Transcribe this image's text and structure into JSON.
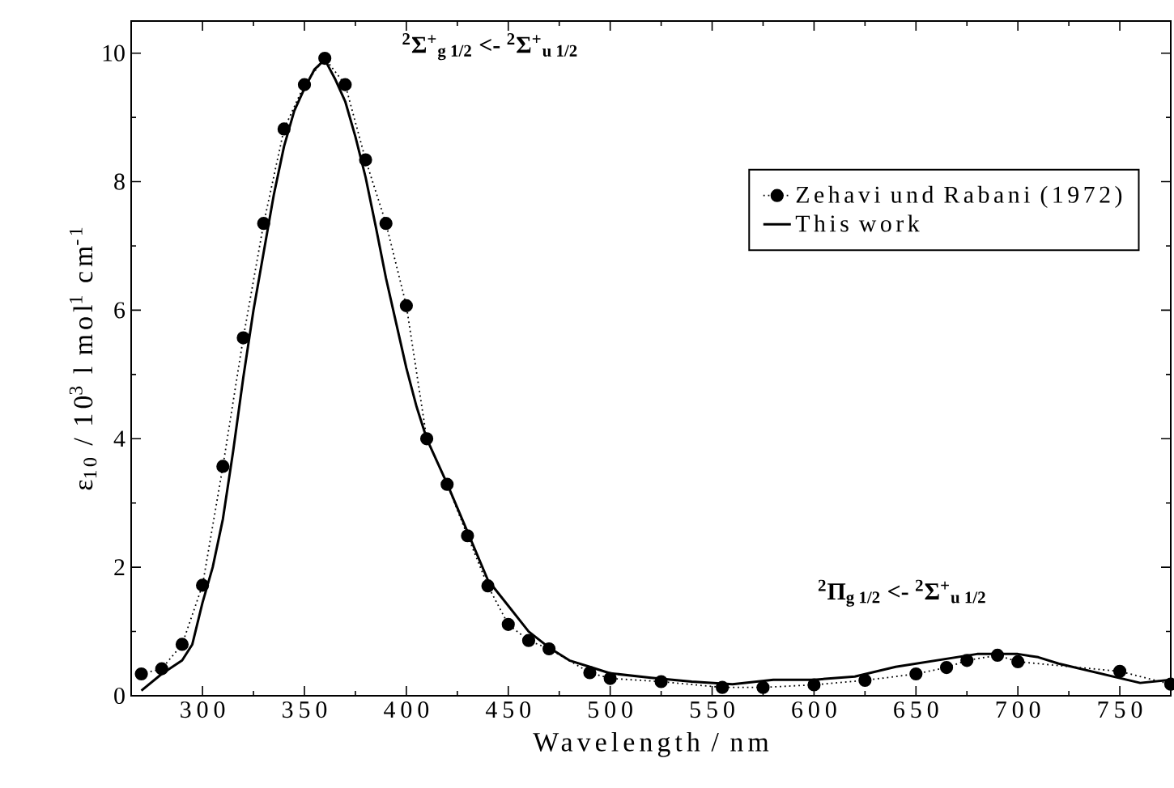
{
  "chart_data": {
    "type": "line",
    "xlabel": "Wavelength / nm",
    "ylabel": "ε$_{10}$ / 10$^{3}$ l mol$^{1}$ cm$^{-1}$",
    "xlim": [
      265,
      775
    ],
    "ylim": [
      0,
      10.5
    ],
    "xticks": [
      300,
      350,
      400,
      450,
      500,
      550,
      600,
      650,
      700,
      750
    ],
    "yticks": [
      0,
      2,
      4,
      6,
      8,
      10
    ],
    "legend": "right",
    "annotations": [
      "$^{2}$Σ$^{+}$$_{g 1/2}$  <-   $^{2}$Σ$^{+}$$_{u 1/2}$",
      "$^{2}$Π$_{g 1/2}$  <-   $^{2}$Σ$^{+}$$_{u 1/2}$"
    ],
    "series": [
      {
        "name": "Zehavi und Rabani (1972)",
        "color": "#000000",
        "marker": "circle",
        "line_style": "dotted",
        "x": [
          270,
          280,
          290,
          300,
          310,
          320,
          330,
          340,
          350,
          360,
          370,
          380,
          390,
          400,
          410,
          420,
          430,
          440,
          450,
          460,
          470,
          490,
          500,
          525,
          555,
          575,
          600,
          625,
          650,
          665,
          675,
          690,
          700,
          750,
          775
        ],
        "values": [
          0.34,
          0.42,
          0.8,
          1.72,
          3.57,
          5.57,
          7.35,
          8.82,
          9.51,
          9.92,
          9.51,
          8.34,
          7.35,
          6.07,
          4.0,
          3.29,
          2.49,
          1.71,
          1.11,
          0.86,
          0.73,
          0.36,
          0.27,
          0.22,
          0.13,
          0.13,
          0.17,
          0.24,
          0.34,
          0.44,
          0.55,
          0.63,
          0.53,
          0.38,
          0.18
        ]
      },
      {
        "name": "This work",
        "color": "#000000",
        "marker": "none",
        "line_style": "solid",
        "x": [
          270,
          280,
          290,
          295,
          300,
          305,
          310,
          315,
          320,
          325,
          330,
          335,
          340,
          345,
          350,
          355,
          360,
          365,
          370,
          375,
          380,
          385,
          390,
          395,
          400,
          405,
          410,
          420,
          430,
          440,
          450,
          460,
          470,
          480,
          490,
          500,
          520,
          540,
          560,
          580,
          600,
          620,
          640,
          660,
          680,
          700,
          710,
          720,
          740,
          760,
          775
        ],
        "values": [
          0.08,
          0.34,
          0.55,
          0.8,
          1.45,
          2.0,
          2.75,
          3.8,
          4.95,
          6.0,
          6.9,
          7.8,
          8.55,
          9.1,
          9.45,
          9.75,
          9.9,
          9.6,
          9.25,
          8.7,
          8.07,
          7.3,
          6.5,
          5.8,
          5.1,
          4.5,
          4.0,
          3.3,
          2.55,
          1.8,
          1.4,
          1.0,
          0.75,
          0.55,
          0.45,
          0.35,
          0.28,
          0.22,
          0.18,
          0.25,
          0.25,
          0.3,
          0.45,
          0.55,
          0.65,
          0.65,
          0.6,
          0.5,
          0.35,
          0.2,
          0.25
        ]
      }
    ]
  }
}
